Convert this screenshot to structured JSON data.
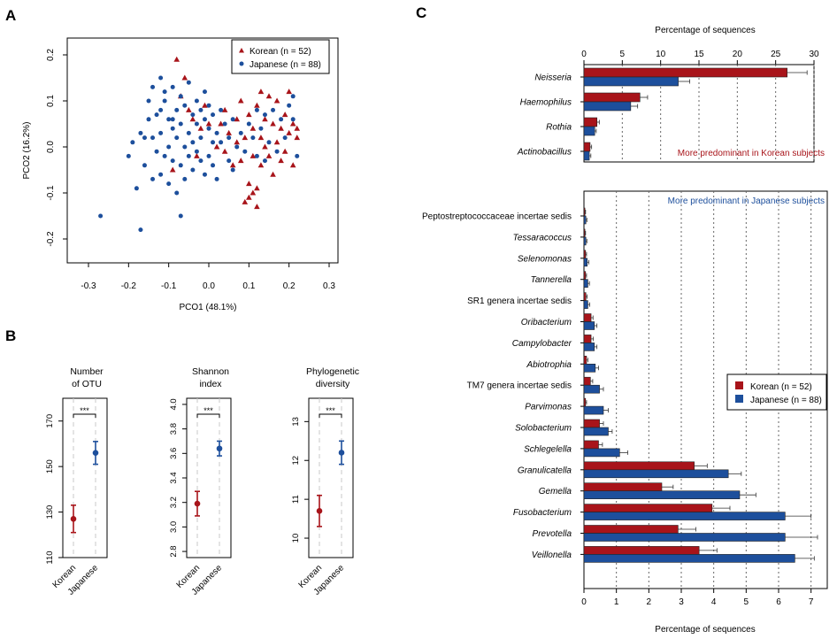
{
  "colors": {
    "korean": "#a8141a",
    "japanese": "#1d4f9c",
    "axis": "#000000",
    "guide": "#c8c8c8"
  },
  "panels": {
    "a": "A",
    "b": "B",
    "c": "C"
  },
  "chart_data": [
    {
      "id": "pcoa",
      "type": "scatter",
      "xlabel": "PCO1 (48.1%)",
      "ylabel": "PCO2 (16.2%)",
      "xlim": [
        -0.3,
        0.3
      ],
      "ylim": [
        -0.2,
        0.2
      ],
      "xticks": [
        "-0.3",
        "-0.2",
        "-0.1",
        "0.0",
        "0.1",
        "0.2",
        "0.3"
      ],
      "yticks": [
        "-0.2",
        "-0.1",
        "0.0",
        "0.1",
        "0.2"
      ],
      "legend": [
        "Korean (n = 52)",
        "Japanese (n = 88)"
      ],
      "legend_position": "top-right",
      "series": [
        {
          "name": "Korean (n = 52)",
          "marker": "triangle",
          "points": [
            [
              -0.08,
              0.19
            ],
            [
              -0.06,
              0.15
            ],
            [
              -0.07,
              0.11
            ],
            [
              -0.05,
              0.08
            ],
            [
              -0.04,
              0.06
            ],
            [
              -0.02,
              0.04
            ],
            [
              -0.01,
              0.09
            ],
            [
              0.0,
              0.05
            ],
            [
              -0.03,
              -0.02
            ],
            [
              -0.09,
              -0.05
            ],
            [
              0.02,
              0.0
            ],
            [
              0.03,
              0.05
            ],
            [
              0.04,
              -0.01
            ],
            [
              0.04,
              0.08
            ],
            [
              0.05,
              0.03
            ],
            [
              0.06,
              -0.04
            ],
            [
              0.07,
              0.06
            ],
            [
              0.07,
              0.01
            ],
            [
              0.08,
              -0.03
            ],
            [
              0.09,
              0.02
            ],
            [
              0.1,
              0.07
            ],
            [
              0.1,
              -0.08
            ],
            [
              0.11,
              0.04
            ],
            [
              0.11,
              -0.02
            ],
            [
              0.12,
              0.09
            ],
            [
              0.12,
              -0.09
            ],
            [
              0.13,
              0.02
            ],
            [
              0.13,
              -0.04
            ],
            [
              0.14,
              0.06
            ],
            [
              0.14,
              0.0
            ],
            [
              0.15,
              0.11
            ],
            [
              0.15,
              -0.02
            ],
            [
              0.16,
              0.05
            ],
            [
              0.16,
              -0.06
            ],
            [
              0.17,
              0.01
            ],
            [
              0.17,
              0.1
            ],
            [
              0.18,
              -0.03
            ],
            [
              0.18,
              0.04
            ],
            [
              0.19,
              0.07
            ],
            [
              0.19,
              -0.01
            ],
            [
              0.2,
              0.03
            ],
            [
              0.2,
              0.12
            ],
            [
              0.21,
              -0.04
            ],
            [
              0.21,
              0.05
            ],
            [
              0.22,
              0.02
            ],
            [
              0.22,
              0.04
            ],
            [
              0.11,
              -0.1
            ],
            [
              0.09,
              -0.12
            ],
            [
              0.1,
              -0.11
            ],
            [
              0.12,
              -0.13
            ],
            [
              0.08,
              0.1
            ],
            [
              0.13,
              0.12
            ]
          ]
        },
        {
          "name": "Japanese (n = 88)",
          "marker": "circle",
          "points": [
            [
              -0.27,
              -0.15
            ],
            [
              -0.17,
              -0.18
            ],
            [
              -0.18,
              -0.09
            ],
            [
              -0.2,
              -0.02
            ],
            [
              -0.19,
              0.01
            ],
            [
              -0.17,
              0.03
            ],
            [
              -0.16,
              -0.04
            ],
            [
              -0.15,
              0.06
            ],
            [
              -0.15,
              0.1
            ],
            [
              -0.14,
              0.02
            ],
            [
              -0.14,
              0.13
            ],
            [
              -0.13,
              -0.01
            ],
            [
              -0.13,
              0.07
            ],
            [
              -0.12,
              0.15
            ],
            [
              -0.12,
              -0.06
            ],
            [
              -0.12,
              0.03
            ],
            [
              -0.11,
              0.1
            ],
            [
              -0.11,
              -0.02
            ],
            [
              -0.11,
              0.12
            ],
            [
              -0.1,
              0.06
            ],
            [
              -0.1,
              0.0
            ],
            [
              -0.1,
              -0.08
            ],
            [
              -0.09,
              0.13
            ],
            [
              -0.09,
              0.04
            ],
            [
              -0.09,
              -0.03
            ],
            [
              -0.08,
              0.08
            ],
            [
              -0.08,
              0.02
            ],
            [
              -0.08,
              -0.1
            ],
            [
              -0.07,
              0.11
            ],
            [
              -0.07,
              -0.04
            ],
            [
              -0.07,
              0.05
            ],
            [
              -0.06,
              0.0
            ],
            [
              -0.06,
              0.09
            ],
            [
              -0.06,
              -0.07
            ],
            [
              -0.05,
              0.03
            ],
            [
              -0.05,
              0.14
            ],
            [
              -0.05,
              -0.02
            ],
            [
              -0.04,
              0.07
            ],
            [
              -0.04,
              -0.05
            ],
            [
              -0.04,
              0.01
            ],
            [
              -0.03,
              0.1
            ],
            [
              -0.03,
              -0.01
            ],
            [
              -0.03,
              0.05
            ],
            [
              -0.02,
              0.08
            ],
            [
              -0.02,
              -0.03
            ],
            [
              -0.02,
              0.02
            ],
            [
              -0.01,
              0.06
            ],
            [
              -0.01,
              -0.06
            ],
            [
              -0.01,
              0.12
            ],
            [
              0.0,
              0.04
            ],
            [
              0.0,
              -0.02
            ],
            [
              0.0,
              0.09
            ],
            [
              0.01,
              0.01
            ],
            [
              0.01,
              0.07
            ],
            [
              0.01,
              -0.04
            ],
            [
              0.02,
              0.03
            ],
            [
              0.02,
              -0.07
            ],
            [
              0.03,
              0.08
            ],
            [
              0.03,
              0.01
            ],
            [
              0.04,
              0.05
            ],
            [
              0.05,
              -0.03
            ],
            [
              0.05,
              0.02
            ],
            [
              0.06,
              0.06
            ],
            [
              0.06,
              -0.05
            ],
            [
              0.07,
              0.0
            ],
            [
              0.08,
              0.03
            ],
            [
              0.09,
              -0.01
            ],
            [
              0.1,
              0.05
            ],
            [
              0.11,
              0.02
            ],
            [
              0.12,
              -0.02
            ],
            [
              0.13,
              0.04
            ],
            [
              0.14,
              0.07
            ],
            [
              0.14,
              -0.03
            ],
            [
              0.15,
              0.01
            ],
            [
              0.16,
              0.08
            ],
            [
              0.17,
              -0.01
            ],
            [
              0.18,
              0.06
            ],
            [
              0.19,
              0.02
            ],
            [
              0.2,
              0.09
            ],
            [
              0.21,
              0.06
            ],
            [
              0.22,
              -0.02
            ],
            [
              0.21,
              0.11
            ],
            [
              -0.07,
              -0.15
            ],
            [
              -0.16,
              0.02
            ],
            [
              -0.14,
              -0.07
            ],
            [
              -0.09,
              0.06
            ],
            [
              -0.12,
              0.08
            ],
            [
              0.12,
              0.08
            ]
          ]
        }
      ]
    },
    {
      "id": "diversity",
      "type": "scatter",
      "categories": [
        "Korean",
        "Japanese"
      ],
      "subplots": [
        {
          "title": "Number\nof OTU",
          "ylim": [
            110,
            180
          ],
          "yticks": [
            "110",
            "130",
            "150",
            "170"
          ],
          "significance": "***",
          "series": [
            {
              "name": "Korean",
              "value": 127,
              "low": 121,
              "high": 133
            },
            {
              "name": "Japanese",
              "value": 156,
              "low": 151,
              "high": 161
            }
          ]
        },
        {
          "title": "Shannon\nindex",
          "ylim": [
            2.75,
            4.05
          ],
          "yticks": [
            "2.8",
            "3.0",
            "3.2",
            "3.4",
            "3.6",
            "3.8",
            "4.0"
          ],
          "significance": "***",
          "series": [
            {
              "name": "Korean",
              "value": 3.19,
              "low": 3.09,
              "high": 3.29
            },
            {
              "name": "Japanese",
              "value": 3.64,
              "low": 3.58,
              "high": 3.7
            }
          ]
        },
        {
          "title": "Phylogenetic\ndiversity",
          "ylim": [
            9.5,
            13.6
          ],
          "yticks": [
            "10",
            "11",
            "12",
            "13"
          ],
          "significance": "***",
          "series": [
            {
              "name": "Korean",
              "value": 10.7,
              "low": 10.3,
              "high": 11.1
            },
            {
              "name": "Japanese",
              "value": 12.2,
              "low": 11.9,
              "high": 12.5
            }
          ]
        }
      ]
    },
    {
      "id": "korean_predominant",
      "type": "bar",
      "orientation": "horizontal",
      "title": "Percentage of sequences",
      "xlim": [
        0,
        30
      ],
      "xticks": [
        "0",
        "5",
        "10",
        "15",
        "20",
        "25",
        "30"
      ],
      "annotation": "More predominant in Korean subjects",
      "categories": [
        "Neisseria",
        "Haemophilus",
        "Rothia",
        "Actinobacillus"
      ],
      "series": [
        {
          "name": "Korean",
          "values": [
            26.5,
            7.3,
            1.7,
            0.8
          ],
          "errors": [
            2.6,
            1.0,
            0.3,
            0.2
          ]
        },
        {
          "name": "Japanese",
          "values": [
            12.3,
            6.1,
            1.4,
            0.7
          ],
          "errors": [
            1.5,
            0.9,
            0.2,
            0.2
          ]
        }
      ]
    },
    {
      "id": "japanese_predominant",
      "type": "bar",
      "orientation": "horizontal",
      "xlabel": "Percentage of sequences",
      "xlim": [
        0,
        7.5
      ],
      "xticks": [
        "0",
        "1",
        "2",
        "3",
        "4",
        "5",
        "6",
        "7"
      ],
      "annotation": "More predominant in Japanese subjects",
      "legend": [
        "Korean (n = 52)",
        "Japanese (n = 88)"
      ],
      "legend_position": "right",
      "categories": [
        "Peptostreptococcaceae incertae sedis",
        "Tessaracoccus",
        "Selenomonas",
        "Tannerella",
        "SR1 genera incertae sedis",
        "Oribacterium",
        "Campylobacter",
        "Abiotrophia",
        "TM7 genera incertae sedis",
        "Parvimonas",
        "Solobacterium",
        "Schlegelella",
        "Granulicatella",
        "Gemella",
        "Fusobacterium",
        "Prevotella",
        "Veillonella"
      ],
      "italic": [
        false,
        true,
        true,
        true,
        false,
        true,
        true,
        true,
        false,
        true,
        true,
        true,
        true,
        true,
        true,
        true,
        true
      ],
      "series": [
        {
          "name": "Korean",
          "values": [
            0.03,
            0.03,
            0.05,
            0.05,
            0.06,
            0.22,
            0.22,
            0.08,
            0.2,
            0.05,
            0.48,
            0.45,
            3.4,
            2.4,
            3.95,
            2.9,
            3.55
          ],
          "errors": [
            0.02,
            0.02,
            0.03,
            0.03,
            0.04,
            0.06,
            0.07,
            0.04,
            0.07,
            0.03,
            0.12,
            0.12,
            0.4,
            0.35,
            0.55,
            0.55,
            0.55
          ]
        },
        {
          "name": "Japanese",
          "values": [
            0.06,
            0.06,
            0.1,
            0.12,
            0.12,
            0.32,
            0.32,
            0.35,
            0.48,
            0.6,
            0.75,
            1.1,
            4.45,
            4.8,
            6.2,
            6.2,
            6.5
          ],
          "errors": [
            0.03,
            0.03,
            0.05,
            0.05,
            0.06,
            0.08,
            0.08,
            0.1,
            0.12,
            0.15,
            0.12,
            0.25,
            0.4,
            0.5,
            0.8,
            1.0,
            0.6
          ]
        }
      ]
    }
  ]
}
